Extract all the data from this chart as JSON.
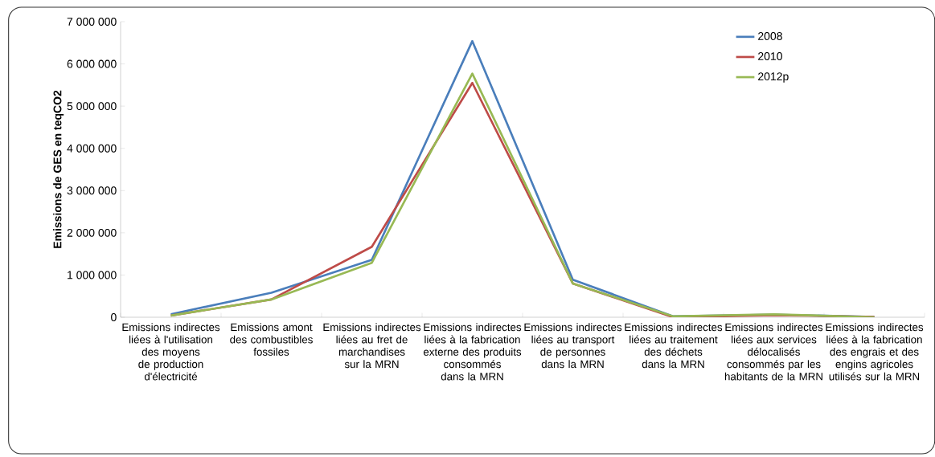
{
  "chart_data": {
    "type": "line",
    "ylabel": "Emissions de GES en teqCO2",
    "categories": [
      "Emissions indirectes liées à l'utilisation des moyens de production d'électricité",
      "Emissions amont des combustibles fossiles",
      "Emissions indirectes liées au fret de marchandises sur la MRN",
      "Emissions indirectes liées à la fabrication externe des produits consommés dans la MRN",
      "Emissions indirectes liées au transport de personnes dans la MRN",
      "Emissions indirectes liées au traitement des déchets dans la MRN",
      "Emissions indirectes liées aux services délocalisés consommés par les habitants de la MRN",
      "Emissions indirectes liées à la fabrication des engrais et des engins agricoles utilisés sur la MRN"
    ],
    "series": [
      {
        "name": "2008",
        "color": "#4a7ebb",
        "values": [
          70000,
          580000,
          1360000,
          6540000,
          890000,
          20000,
          60000,
          10000
        ]
      },
      {
        "name": "2010",
        "color": "#be4b48",
        "values": [
          40000,
          420000,
          1670000,
          5550000,
          800000,
          0,
          50000,
          10000
        ]
      },
      {
        "name": "2012p",
        "color": "#98b954",
        "values": [
          40000,
          420000,
          1290000,
          5770000,
          800000,
          20000,
          70000,
          0
        ]
      }
    ],
    "ylim": [
      0,
      7000000
    ],
    "yticks": [
      {
        "value": 0,
        "label": "0"
      },
      {
        "value": 1000000,
        "label": "1 000 000"
      },
      {
        "value": 2000000,
        "label": "2 000 000"
      },
      {
        "value": 3000000,
        "label": "3 000 000"
      },
      {
        "value": 4000000,
        "label": "4 000 000"
      },
      {
        "value": 5000000,
        "label": "5 000 000"
      },
      {
        "value": 6000000,
        "label": "6 000 000"
      },
      {
        "value": 7000000,
        "label": "7 000 000"
      }
    ],
    "grid": false,
    "legend": "top right",
    "marker": "none",
    "line_style": "solid"
  }
}
